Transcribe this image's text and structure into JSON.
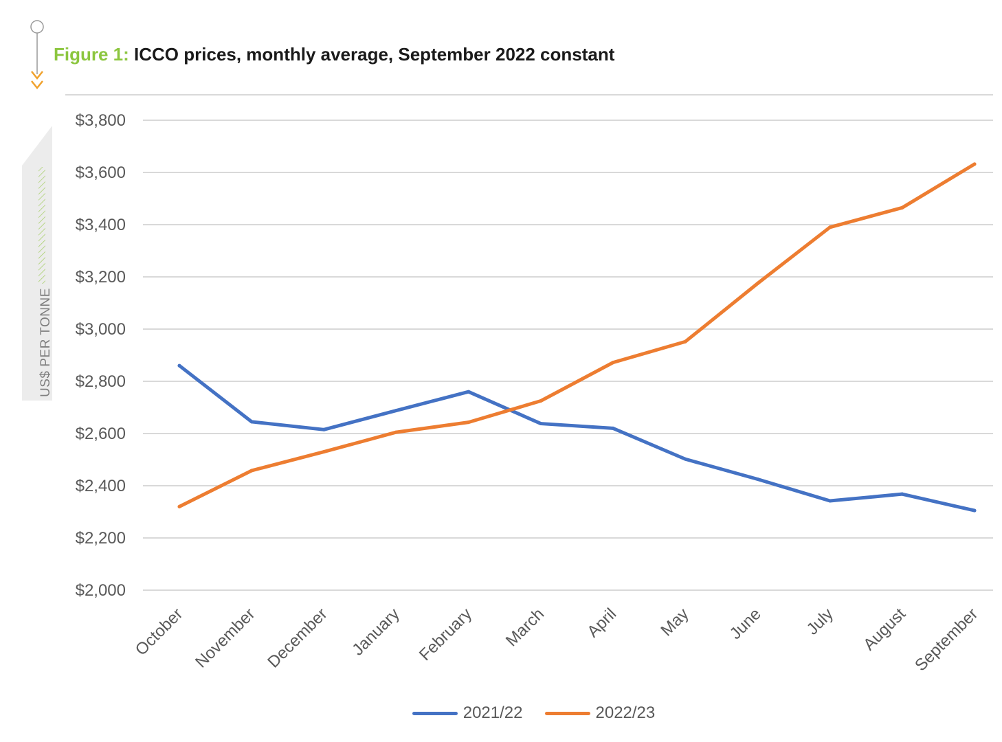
{
  "figure": {
    "label": "Figure 1:",
    "title": "ICCO prices, monthly average, September 2022 constant"
  },
  "colors": {
    "accent_green": "#8cc63f",
    "accent_orange": "#f0a22e",
    "series_2021_22": "#4472c4",
    "series_2022_23": "#ed7d31",
    "grid": "#d9d9d9"
  },
  "chart_data": {
    "type": "line",
    "title": "ICCO prices, monthly average, September 2022 constant",
    "xlabel": "",
    "ylabel": "US$ PER TONNE",
    "ylim": [
      2000,
      3800
    ],
    "yticks": [
      2000,
      2200,
      2400,
      2600,
      2800,
      3000,
      3200,
      3400,
      3600,
      3800
    ],
    "ytick_labels": [
      "$2,000",
      "$2,200",
      "$2,400",
      "$2,600",
      "$2,800",
      "$3,000",
      "$3,200",
      "$3,400",
      "$3,600",
      "$3,800"
    ],
    "grid": true,
    "legend_position": "bottom",
    "categories": [
      "October",
      "November",
      "December",
      "January",
      "February",
      "March",
      "April",
      "May",
      "June",
      "July",
      "August",
      "September"
    ],
    "series": [
      {
        "name": "2021/22",
        "color": "#4472c4",
        "values": [
          2860,
          2645,
          2615,
          2688,
          2760,
          2638,
          2620,
          2502,
          2425,
          2342,
          2368,
          2305
        ]
      },
      {
        "name": "2022/23",
        "color": "#ed7d31",
        "values": [
          2320,
          2458,
          2530,
          2605,
          2643,
          2725,
          2872,
          2952,
          3175,
          3390,
          3465,
          3632
        ]
      }
    ]
  }
}
